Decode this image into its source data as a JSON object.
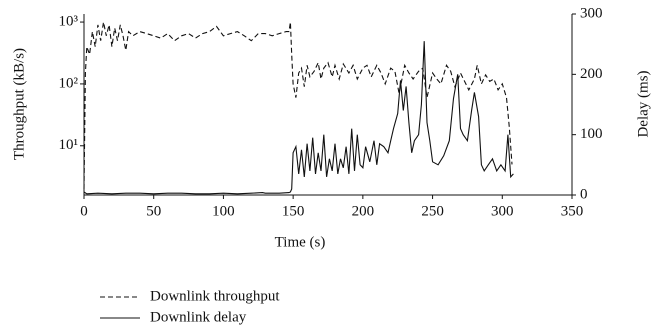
{
  "chart_data": {
    "type": "line",
    "xlabel": "Time (s)",
    "ylabel": "Throughput (kB/s)",
    "y2label": "Delay (ms)",
    "xlim": [
      0,
      350
    ],
    "xticks": [
      0,
      50,
      100,
      150,
      200,
      250,
      300,
      350
    ],
    "ylim": [
      1.6,
      1350
    ],
    "yscale": "log",
    "yticks": [
      {
        "value": 10,
        "label": "10¹"
      },
      {
        "value": 100,
        "label": "10²"
      },
      {
        "value": 1000,
        "label": "10³"
      }
    ],
    "y2lim": [
      0,
      300
    ],
    "y2ticks": [
      0,
      100,
      200,
      300
    ],
    "legend": "bottom-left",
    "series": [
      {
        "name": "Downlink throughput",
        "color": "#111111",
        "style": "dashed",
        "axis": "y",
        "x": [
          0,
          1,
          2,
          4,
          6,
          8,
          10,
          12,
          14,
          16,
          18,
          20,
          22,
          24,
          26,
          28,
          30,
          32,
          35,
          40,
          45,
          50,
          55,
          60,
          65,
          70,
          75,
          80,
          85,
          90,
          95,
          100,
          105,
          110,
          115,
          120,
          125,
          130,
          135,
          140,
          145,
          147,
          148,
          149,
          150,
          152,
          154,
          156,
          158,
          160,
          162,
          165,
          168,
          170,
          172,
          175,
          178,
          180,
          183,
          186,
          190,
          193,
          196,
          200,
          203,
          206,
          210,
          213,
          216,
          220,
          223,
          226,
          230,
          233,
          236,
          240,
          243,
          246,
          250,
          253,
          256,
          260,
          263,
          266,
          270,
          273,
          276,
          280,
          282,
          285,
          288,
          291,
          294,
          297,
          300,
          303,
          305,
          307
        ],
        "values": [
          2,
          150,
          400,
          300,
          700,
          400,
          900,
          500,
          1000,
          600,
          900,
          400,
          800,
          500,
          900,
          600,
          350,
          700,
          600,
          700,
          650,
          600,
          550,
          650,
          500,
          600,
          650,
          550,
          650,
          700,
          850,
          600,
          650,
          700,
          600,
          500,
          650,
          650,
          600,
          650,
          700,
          700,
          1000,
          300,
          100,
          60,
          150,
          180,
          90,
          200,
          130,
          160,
          220,
          120,
          180,
          220,
          130,
          200,
          120,
          210,
          150,
          200,
          120,
          180,
          200,
          130,
          200,
          150,
          100,
          180,
          160,
          70,
          200,
          150,
          120,
          160,
          180,
          60,
          150,
          120,
          100,
          200,
          160,
          90,
          150,
          110,
          80,
          120,
          200,
          100,
          140,
          110,
          120,
          80,
          100,
          60,
          20,
          5
        ]
      },
      {
        "name": "Downlink delay",
        "color": "#111111",
        "style": "solid",
        "axis": "y2",
        "x": [
          0,
          2,
          10,
          20,
          30,
          40,
          50,
          60,
          70,
          80,
          90,
          100,
          110,
          120,
          128,
          130,
          140,
          147,
          148,
          149,
          150,
          152,
          154,
          156,
          158,
          160,
          162,
          164,
          166,
          168,
          170,
          172,
          174,
          176,
          178,
          180,
          182,
          184,
          186,
          188,
          190,
          192,
          194,
          196,
          198,
          200,
          202,
          205,
          208,
          210,
          212,
          215,
          218,
          220,
          222,
          225,
          227,
          229,
          231,
          233,
          235,
          237,
          240,
          242,
          244,
          246,
          248,
          250,
          254,
          258,
          262,
          265,
          268,
          270,
          272,
          275,
          278,
          280,
          283,
          285,
          287,
          290,
          293,
          296,
          299,
          302,
          304,
          306,
          308
        ],
        "values": [
          5,
          2,
          3,
          2,
          3,
          3,
          2,
          3,
          3,
          2,
          2,
          3,
          2,
          3,
          4,
          3,
          3,
          4,
          5,
          10,
          70,
          80,
          35,
          75,
          30,
          85,
          40,
          95,
          35,
          70,
          40,
          100,
          30,
          60,
          40,
          85,
          35,
          60,
          45,
          80,
          35,
          110,
          40,
          100,
          50,
          45,
          80,
          55,
          90,
          50,
          85,
          80,
          70,
          90,
          110,
          135,
          190,
          140,
          180,
          120,
          70,
          90,
          100,
          150,
          255,
          120,
          90,
          55,
          50,
          65,
          90,
          160,
          200,
          110,
          100,
          90,
          140,
          170,
          130,
          50,
          40,
          50,
          60,
          40,
          50,
          40,
          100,
          30,
          35
        ]
      }
    ]
  }
}
